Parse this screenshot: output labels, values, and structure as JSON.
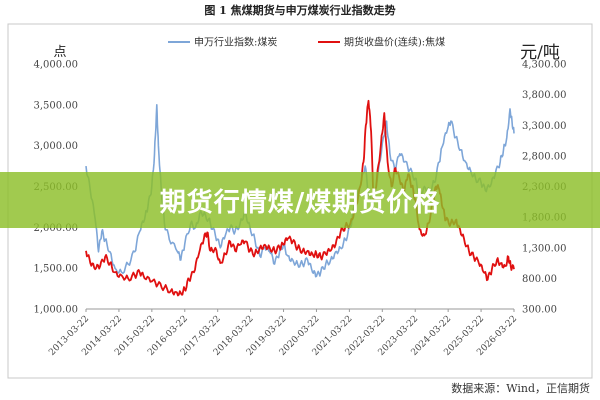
{
  "figure": {
    "title": "图 1   焦煤期货与申万煤炭行业指数走势",
    "source": "数据来源：Wind，正信期货"
  },
  "banner": {
    "text": "期货行情煤/煤期货价格"
  },
  "colors": {
    "index_line": "#7ea6d8",
    "futures_line": "#e01010",
    "banner": "#8cbe28"
  },
  "chart_data": {
    "type": "line",
    "title": "图 1   焦煤期货与申万煤炭行业指数走势",
    "left_axis": {
      "unit_label": "点",
      "range": [
        1000,
        4000
      ],
      "ticks": [
        "1,000.00",
        "1,500.00",
        "2,000.00",
        "2,500.00",
        "3,000.00",
        "3,500.00",
        "4,000.00"
      ]
    },
    "right_axis": {
      "unit_label": "元/吨",
      "range": [
        300,
        4300
      ],
      "ticks": [
        "300.00",
        "800.00",
        "1,300.00",
        "1,800.00",
        "2,300.00",
        "2,800.00",
        "3,300.00",
        "3,800.00",
        "4,300.00"
      ]
    },
    "x_ticks": [
      "2013-03-22",
      "2014-03-22",
      "2015-03-22",
      "2016-03-22",
      "2017-03-22",
      "2018-03-22",
      "2019-03-22",
      "2020-03-22",
      "2021-03-22",
      "2022-03-22",
      "2023-03-22",
      "2024-03-22",
      "2025-03-22",
      "2026-03-22"
    ],
    "x_range": [
      2013.22,
      2026.22
    ],
    "legend_position": "top",
    "grid": false,
    "series": [
      {
        "name": "申万行业指数:煤炭",
        "axis": "left",
        "points": [
          [
            2013.22,
            2750
          ],
          [
            2013.35,
            2450
          ],
          [
            2013.5,
            2100
          ],
          [
            2013.6,
            1700
          ],
          [
            2013.7,
            1950
          ],
          [
            2013.8,
            1850
          ],
          [
            2013.95,
            1700
          ],
          [
            2014.1,
            1500
          ],
          [
            2014.3,
            1450
          ],
          [
            2014.5,
            1550
          ],
          [
            2014.7,
            1700
          ],
          [
            2014.85,
            1950
          ],
          [
            2015.0,
            2100
          ],
          [
            2015.1,
            2250
          ],
          [
            2015.22,
            2500
          ],
          [
            2015.3,
            2900
          ],
          [
            2015.37,
            3500
          ],
          [
            2015.42,
            3000
          ],
          [
            2015.5,
            2500
          ],
          [
            2015.6,
            2050
          ],
          [
            2015.75,
            1850
          ],
          [
            2016.0,
            1700
          ],
          [
            2016.1,
            1600
          ],
          [
            2016.22,
            1800
          ],
          [
            2016.4,
            2050
          ],
          [
            2016.55,
            2000
          ],
          [
            2016.7,
            2200
          ],
          [
            2016.85,
            2150
          ],
          [
            2017.0,
            2050
          ],
          [
            2017.15,
            1900
          ],
          [
            2017.3,
            1750
          ],
          [
            2017.45,
            1900
          ],
          [
            2017.6,
            2000
          ],
          [
            2017.75,
            1950
          ],
          [
            2017.9,
            2050
          ],
          [
            2018.05,
            2200
          ],
          [
            2018.2,
            2000
          ],
          [
            2018.35,
            1850
          ],
          [
            2018.5,
            1650
          ],
          [
            2018.65,
            1750
          ],
          [
            2018.8,
            1700
          ],
          [
            2018.95,
            1550
          ],
          [
            2019.1,
            1700
          ],
          [
            2019.22,
            1800
          ],
          [
            2019.35,
            1650
          ],
          [
            2019.5,
            1600
          ],
          [
            2019.65,
            1550
          ],
          [
            2019.8,
            1550
          ],
          [
            2019.95,
            1600
          ],
          [
            2020.1,
            1450
          ],
          [
            2020.22,
            1400
          ],
          [
            2020.35,
            1450
          ],
          [
            2020.5,
            1550
          ],
          [
            2020.65,
            1600
          ],
          [
            2020.8,
            1700
          ],
          [
            2020.95,
            1750
          ],
          [
            2021.1,
            1850
          ],
          [
            2021.25,
            2000
          ],
          [
            2021.4,
            2300
          ],
          [
            2021.55,
            2500
          ],
          [
            2021.7,
            2750
          ],
          [
            2021.8,
            2400
          ],
          [
            2021.95,
            2300
          ],
          [
            2022.1,
            2700
          ],
          [
            2022.25,
            3100
          ],
          [
            2022.35,
            3300
          ],
          [
            2022.45,
            2900
          ],
          [
            2022.6,
            2700
          ],
          [
            2022.75,
            2900
          ],
          [
            2022.9,
            2800
          ],
          [
            2023.05,
            2700
          ],
          [
            2023.22,
            2600
          ],
          [
            2023.35,
            2400
          ],
          [
            2023.5,
            2500
          ],
          [
            2023.65,
            2450
          ],
          [
            2023.8,
            2550
          ],
          [
            2023.95,
            2800
          ],
          [
            2024.05,
            3000
          ],
          [
            2024.2,
            3200
          ],
          [
            2024.3,
            3300
          ],
          [
            2024.45,
            3100
          ],
          [
            2024.6,
            2950
          ],
          [
            2024.75,
            2800
          ],
          [
            2024.9,
            2700
          ],
          [
            2025.05,
            2600
          ],
          [
            2025.22,
            2550
          ],
          [
            2025.35,
            2450
          ],
          [
            2025.5,
            2500
          ],
          [
            2025.65,
            2650
          ],
          [
            2025.8,
            2800
          ],
          [
            2025.9,
            2950
          ],
          [
            2026.0,
            3100
          ],
          [
            2026.1,
            3450
          ],
          [
            2026.16,
            3300
          ],
          [
            2026.22,
            3150
          ]
        ]
      },
      {
        "name": "期货收盘价(连续):焦煤",
        "axis": "right",
        "points": [
          [
            2013.22,
            1250
          ],
          [
            2013.35,
            1050
          ],
          [
            2013.5,
            950
          ],
          [
            2013.65,
            1000
          ],
          [
            2013.8,
            1150
          ],
          [
            2013.95,
            1050
          ],
          [
            2014.1,
            900
          ],
          [
            2014.3,
            850
          ],
          [
            2014.5,
            800
          ],
          [
            2014.7,
            850
          ],
          [
            2014.85,
            900
          ],
          [
            2015.0,
            800
          ],
          [
            2015.22,
            750
          ],
          [
            2015.4,
            700
          ],
          [
            2015.6,
            650
          ],
          [
            2015.8,
            600
          ],
          [
            2015.95,
            580
          ],
          [
            2016.1,
            560
          ],
          [
            2016.22,
            620
          ],
          [
            2016.35,
            780
          ],
          [
            2016.5,
            900
          ],
          [
            2016.65,
            1200
          ],
          [
            2016.8,
            1450
          ],
          [
            2016.9,
            1550
          ],
          [
            2017.0,
            1250
          ],
          [
            2017.15,
            1300
          ],
          [
            2017.3,
            1050
          ],
          [
            2017.45,
            1200
          ],
          [
            2017.6,
            1400
          ],
          [
            2017.75,
            1250
          ],
          [
            2017.9,
            1350
          ],
          [
            2018.05,
            1400
          ],
          [
            2018.2,
            1250
          ],
          [
            2018.35,
            1200
          ],
          [
            2018.5,
            1300
          ],
          [
            2018.65,
            1350
          ],
          [
            2018.8,
            1300
          ],
          [
            2018.95,
            1250
          ],
          [
            2019.1,
            1300
          ],
          [
            2019.22,
            1350
          ],
          [
            2019.35,
            1450
          ],
          [
            2019.5,
            1400
          ],
          [
            2019.65,
            1300
          ],
          [
            2019.8,
            1250
          ],
          [
            2019.95,
            1250
          ],
          [
            2020.1,
            1200
          ],
          [
            2020.22,
            1200
          ],
          [
            2020.35,
            1150
          ],
          [
            2020.5,
            1200
          ],
          [
            2020.65,
            1250
          ],
          [
            2020.8,
            1350
          ],
          [
            2020.95,
            1550
          ],
          [
            2021.1,
            1650
          ],
          [
            2021.25,
            1700
          ],
          [
            2021.4,
            1950
          ],
          [
            2021.55,
            2300
          ],
          [
            2021.65,
            2700
          ],
          [
            2021.72,
            3300
          ],
          [
            2021.8,
            3700
          ],
          [
            2021.88,
            3200
          ],
          [
            2021.95,
            2100
          ],
          [
            2022.05,
            2400
          ],
          [
            2022.18,
            3000
          ],
          [
            2022.28,
            3500
          ],
          [
            2022.38,
            2700
          ],
          [
            2022.5,
            2300
          ],
          [
            2022.62,
            2600
          ],
          [
            2022.75,
            2400
          ],
          [
            2022.88,
            2200
          ],
          [
            2023.0,
            2500
          ],
          [
            2023.12,
            2300
          ],
          [
            2023.22,
            2100
          ],
          [
            2023.35,
            1600
          ],
          [
            2023.5,
            1500
          ],
          [
            2023.62,
            1700
          ],
          [
            2023.75,
            2000
          ],
          [
            2023.85,
            2300
          ],
          [
            2023.95,
            2250
          ],
          [
            2024.05,
            1950
          ],
          [
            2024.15,
            1750
          ],
          [
            2024.3,
            1700
          ],
          [
            2024.45,
            1750
          ],
          [
            2024.55,
            1650
          ],
          [
            2024.7,
            1450
          ],
          [
            2024.85,
            1250
          ],
          [
            2025.0,
            1150
          ],
          [
            2025.15,
            1050
          ],
          [
            2025.3,
            900
          ],
          [
            2025.42,
            780
          ],
          [
            2025.55,
            950
          ],
          [
            2025.7,
            1100
          ],
          [
            2025.82,
            1050
          ],
          [
            2025.95,
            1000
          ],
          [
            2026.05,
            1150
          ],
          [
            2026.12,
            1000
          ],
          [
            2026.22,
            950
          ]
        ]
      }
    ]
  }
}
